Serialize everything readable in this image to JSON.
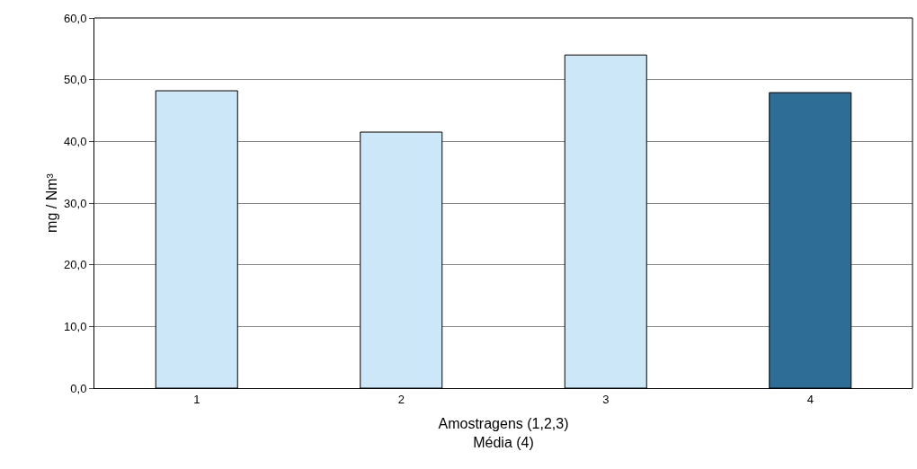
{
  "chart_data": {
    "type": "bar",
    "categories": [
      "1",
      "2",
      "3",
      "4"
    ],
    "values": [
      48.2,
      41.5,
      54.0,
      47.9
    ],
    "colors": [
      "#cce8f8",
      "#cce8f8",
      "#cce8f8",
      "#2e6e96"
    ],
    "xlabel": "Amostragens (1,2,3)\nMédia (4)",
    "ylabel": "mg / Nm³",
    "ylim": [
      0,
      60
    ],
    "yticks": [
      {
        "value": 0,
        "label": "0,0"
      },
      {
        "value": 10,
        "label": "10,0"
      },
      {
        "value": 20,
        "label": "20,0"
      },
      {
        "value": 30,
        "label": "30,0"
      },
      {
        "value": 40,
        "label": "40,0"
      },
      {
        "value": 50,
        "label": "50,0"
      },
      {
        "value": 60,
        "label": "60,0"
      }
    ],
    "grid": "y",
    "legend": false
  }
}
